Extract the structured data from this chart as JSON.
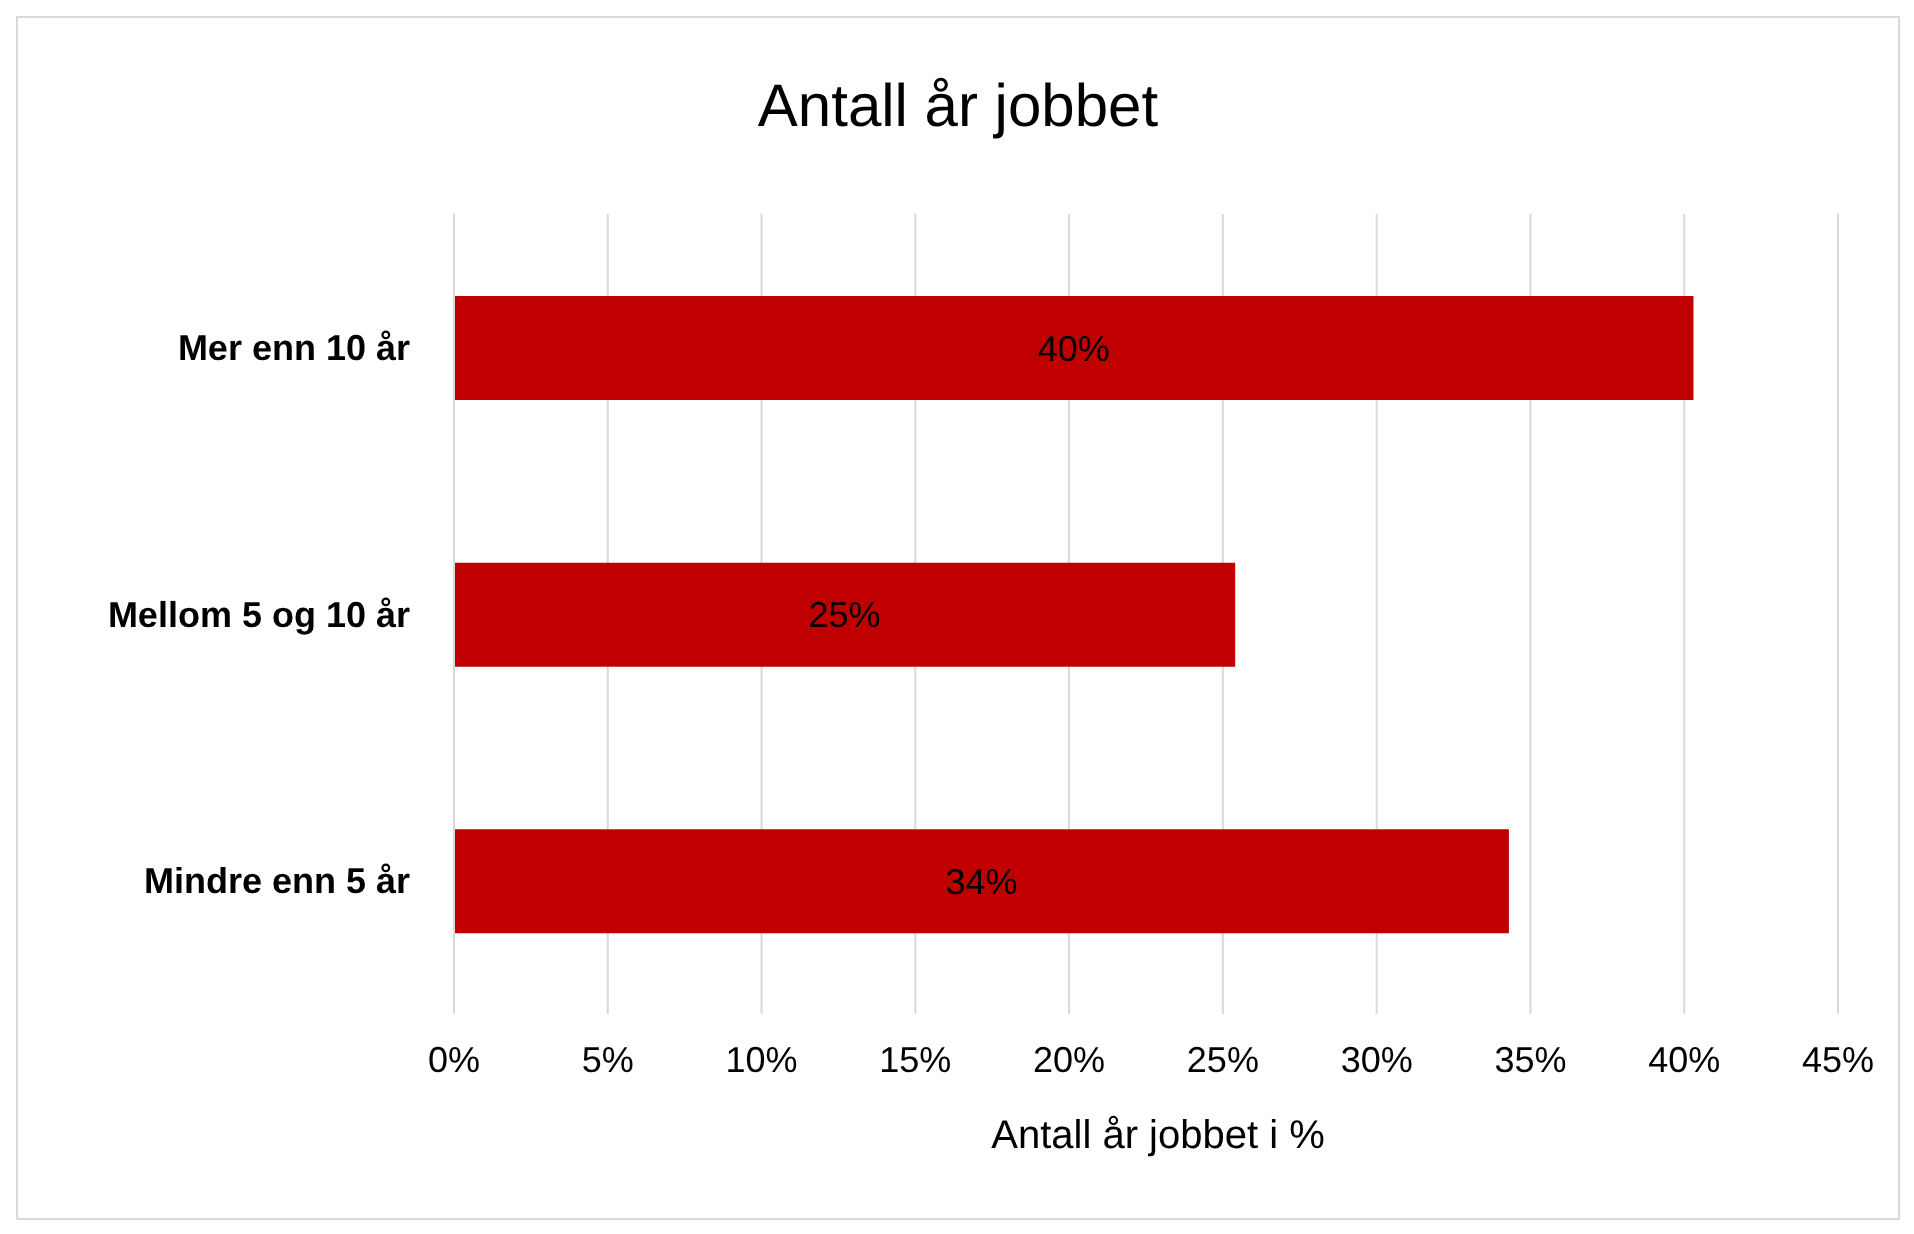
{
  "chart_data": {
    "type": "bar",
    "orientation": "horizontal",
    "title": "Antall år jobbet",
    "xlabel": "Antall år jobbet i %",
    "categories": [
      "Mer enn 10 år",
      "Mellom 5 og 10 år",
      "Mindre enn 5 år"
    ],
    "values": [
      40.3,
      25.4,
      34.3
    ],
    "value_labels": [
      "40%",
      "25%",
      "34%"
    ],
    "color": "#c00000",
    "xlim": [
      0,
      45
    ],
    "xticks": [
      {
        "value": 0,
        "label": "0%"
      },
      {
        "value": 5,
        "label": "5%"
      },
      {
        "value": 10,
        "label": "10%"
      },
      {
        "value": 15,
        "label": "15%"
      },
      {
        "value": 20,
        "label": "20%"
      },
      {
        "value": 25,
        "label": "25%"
      },
      {
        "value": 30,
        "label": "30%"
      },
      {
        "value": 35,
        "label": "35%"
      },
      {
        "value": 40,
        "label": "40%"
      },
      {
        "value": 45,
        "label": "45%"
      }
    ],
    "grid": "x"
  }
}
